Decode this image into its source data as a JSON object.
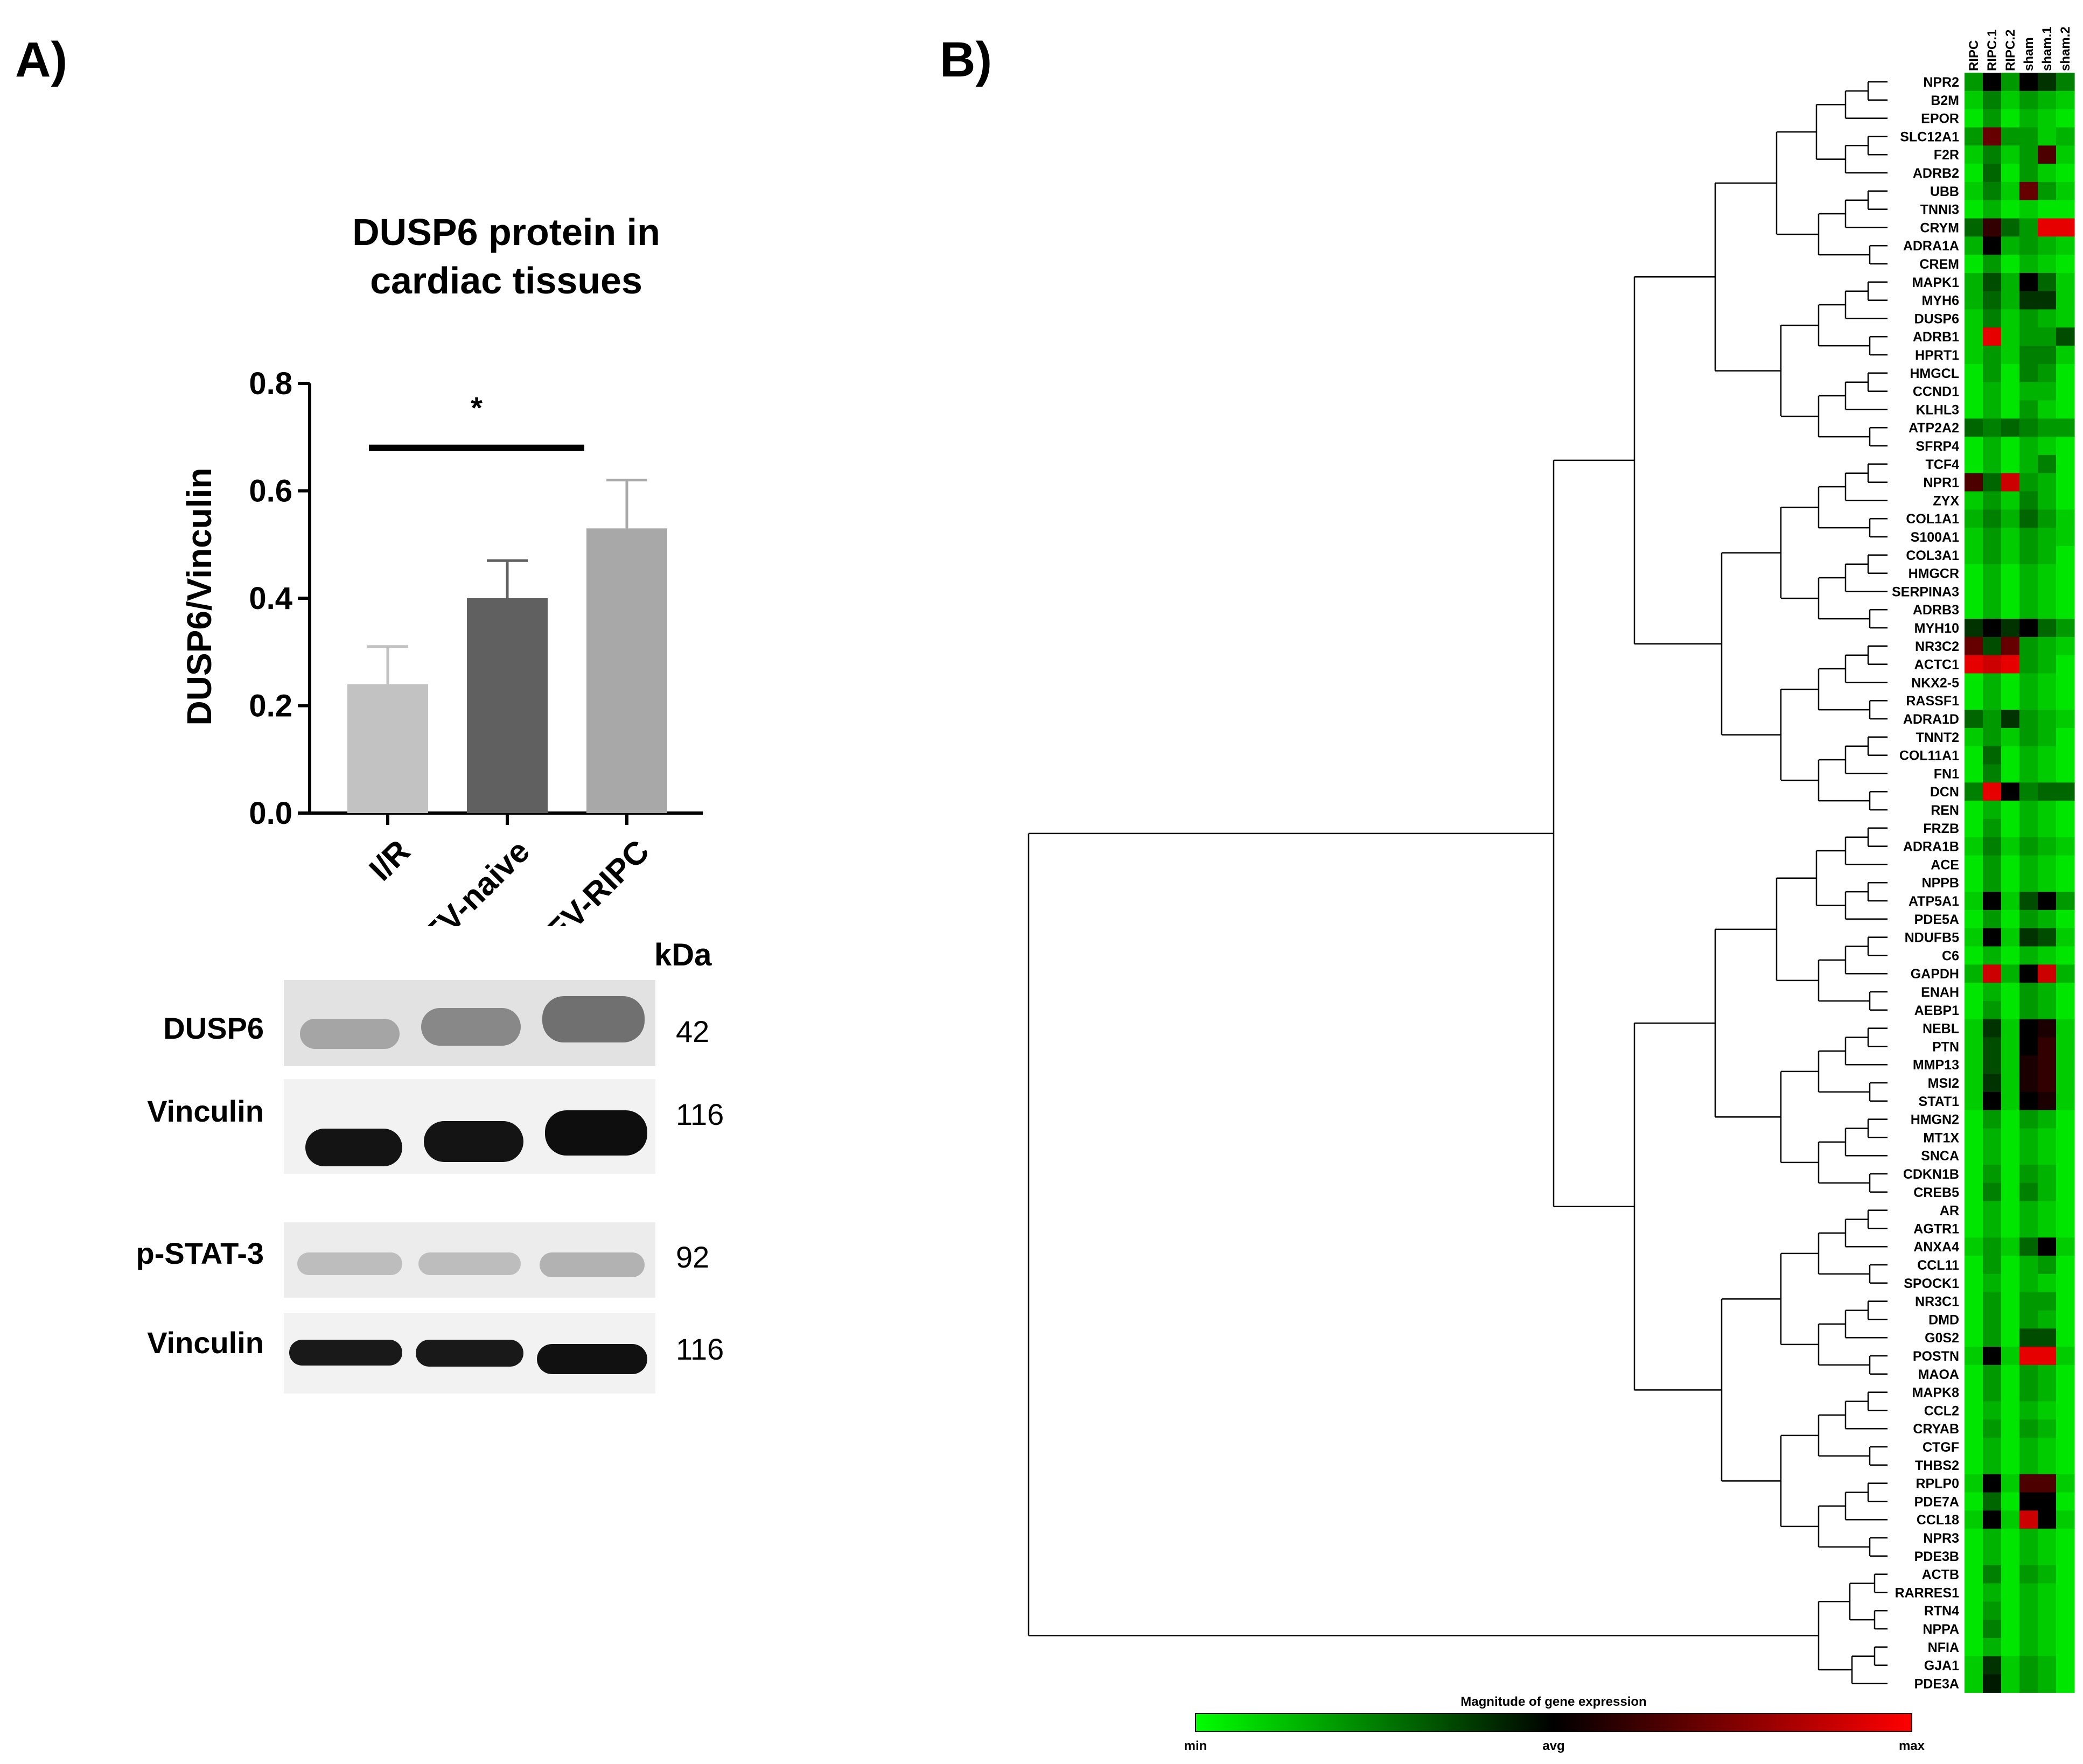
{
  "panel_a": {
    "label": "A)",
    "blot": {
      "kda_header": "kDa",
      "rows": [
        {
          "label": "DUSP6",
          "kda": "42"
        },
        {
          "label": "Vinculin",
          "kda": "116"
        },
        {
          "label": "p-STAT-3",
          "kda": "92"
        },
        {
          "label": "Vinculin",
          "kda": "116"
        }
      ]
    }
  },
  "panel_b": {
    "label": "B)"
  },
  "chart_data": [
    {
      "type": "bar",
      "title_line1": "DUSP6 protein in",
      "title_line2": "cardiac tissues",
      "ylabel": "DUSP6/Vinculin",
      "xlabel": "",
      "ylim": [
        0,
        0.8
      ],
      "yticks": [
        "0.0",
        "0.2",
        "0.4",
        "0.6",
        "0.8"
      ],
      "categories": [
        "I/R",
        "EV-naive",
        "EV-RIPC"
      ],
      "values": [
        0.24,
        0.4,
        0.53
      ],
      "errors": [
        0.07,
        0.07,
        0.09
      ],
      "colors": [
        "#c2c2c2",
        "#606060",
        "#a8a8a8"
      ],
      "significance": {
        "from": 0,
        "to": 2,
        "level": 0.68,
        "label": "*"
      }
    },
    {
      "type": "heatmap",
      "columns": [
        "RIPC",
        "RIPC.1",
        "RIPC.2",
        "sham",
        "sham.1",
        "sham.2"
      ],
      "genes": [
        "NPR2",
        "B2M",
        "EPOR",
        "SLC12A1",
        "F2R",
        "ADRB2",
        "UBB",
        "TNNI3",
        "CRYM",
        "ADRA1A",
        "CREM",
        "MAPK1",
        "MYH6",
        "DUSP6",
        "ADRB1",
        "HPRT1",
        "HMGCL",
        "CCND1",
        "KLHL3",
        "ATP2A2",
        "SFRP4",
        "TCF4",
        "NPR1",
        "ZYX",
        "COL1A1",
        "S100A1",
        "COL3A1",
        "HMGCR",
        "SERPINA3",
        "ADRB3",
        "MYH10",
        "NR3C2",
        "ACTC1",
        "NKX2-5",
        "RASSF1",
        "ADRA1D",
        "TNNT2",
        "COL11A1",
        "FN1",
        "DCN",
        "REN",
        "FRZB",
        "ADRA1B",
        "ACE",
        "NPPB",
        "ATP5A1",
        "PDE5A",
        "NDUFB5",
        "C6",
        "GAPDH",
        "ENAH",
        "AEBP1",
        "NEBL",
        "PTN",
        "MMP13",
        "MSI2",
        "STAT1",
        "HMGN2",
        "MT1X",
        "SNCA",
        "CDKN1B",
        "CREB5",
        "AR",
        "AGTR1",
        "ANXA4",
        "CCL11",
        "SPOCK1",
        "NR3C1",
        "DMD",
        "G0S2",
        "POSTN",
        "MAOA",
        "MAPK8",
        "CCL2",
        "CRYAB",
        "CTGF",
        "THBS2",
        "RPLP0",
        "PDE7A",
        "CCL18",
        "NPR3",
        "PDE3B",
        "ACTB",
        "RARRES1",
        "RTN4",
        "NPPA",
        "NFIA",
        "GJA1",
        "PDE3A"
      ],
      "values": [
        [
          -0.6,
          0.0,
          -0.6,
          0.0,
          -0.2,
          -0.5
        ],
        [
          -0.8,
          -0.5,
          -0.8,
          -0.6,
          -0.7,
          -0.8
        ],
        [
          -0.9,
          -0.6,
          -0.9,
          -0.7,
          -0.8,
          -0.9
        ],
        [
          -0.6,
          0.4,
          -0.6,
          -0.6,
          -0.8,
          -0.7
        ],
        [
          -0.8,
          -0.5,
          -0.8,
          -0.6,
          0.3,
          -0.8
        ],
        [
          -0.9,
          -0.4,
          -0.9,
          -0.6,
          -0.8,
          -0.9
        ],
        [
          -0.8,
          -0.5,
          -0.8,
          0.4,
          -0.6,
          -0.8
        ],
        [
          -0.9,
          -0.7,
          -0.9,
          -0.8,
          -0.9,
          -0.9
        ],
        [
          -0.4,
          0.2,
          -0.4,
          -0.6,
          0.9,
          0.9
        ],
        [
          -0.7,
          0.0,
          -0.7,
          -0.6,
          -0.7,
          -0.8
        ],
        [
          -0.9,
          -0.6,
          -0.9,
          -0.7,
          -0.8,
          -0.9
        ],
        [
          -0.7,
          -0.3,
          -0.7,
          0.0,
          -0.4,
          -0.8
        ],
        [
          -0.7,
          -0.4,
          -0.7,
          -0.2,
          -0.2,
          -0.8
        ],
        [
          -0.8,
          -0.5,
          -0.8,
          -0.6,
          -0.7,
          -0.8
        ],
        [
          -0.8,
          0.9,
          -0.8,
          -0.6,
          -0.6,
          -0.3
        ],
        [
          -0.8,
          -0.6,
          -0.8,
          -0.5,
          -0.5,
          -0.8
        ],
        [
          -0.9,
          -0.6,
          -0.9,
          -0.5,
          -0.6,
          -0.9
        ],
        [
          -0.9,
          -0.7,
          -0.9,
          -0.7,
          -0.7,
          -0.9
        ],
        [
          -0.9,
          -0.7,
          -0.9,
          -0.6,
          -0.8,
          -0.9
        ],
        [
          -0.4,
          -0.5,
          -0.4,
          -0.5,
          -0.6,
          -0.6
        ],
        [
          -0.9,
          -0.7,
          -0.9,
          -0.7,
          -0.8,
          -0.9
        ],
        [
          -0.9,
          -0.7,
          -0.9,
          -0.7,
          -0.5,
          -0.9
        ],
        [
          0.3,
          -0.4,
          0.8,
          -0.6,
          -0.7,
          -0.9
        ],
        [
          -0.8,
          -0.6,
          -0.8,
          -0.5,
          -0.7,
          -0.9
        ],
        [
          -0.7,
          -0.5,
          -0.7,
          -0.4,
          -0.6,
          -0.8
        ],
        [
          -0.8,
          -0.6,
          -0.8,
          -0.6,
          -0.7,
          -0.8
        ],
        [
          -0.8,
          -0.6,
          -0.8,
          -0.6,
          -0.7,
          -0.9
        ],
        [
          -0.9,
          -0.7,
          -0.9,
          -0.7,
          -0.8,
          -0.9
        ],
        [
          -0.9,
          -0.7,
          -0.9,
          -0.7,
          -0.8,
          -0.9
        ],
        [
          -0.9,
          -0.7,
          -0.9,
          -0.7,
          -0.8,
          -0.9
        ],
        [
          -0.2,
          0.0,
          -0.2,
          0.0,
          -0.4,
          -0.6
        ],
        [
          0.4,
          -0.3,
          0.4,
          -0.6,
          -0.7,
          -0.8
        ],
        [
          0.9,
          0.8,
          0.9,
          -0.6,
          -0.7,
          -0.9
        ],
        [
          -0.9,
          -0.7,
          -0.9,
          -0.7,
          -0.8,
          -0.9
        ],
        [
          -0.9,
          -0.7,
          -0.9,
          -0.7,
          -0.8,
          -0.9
        ],
        [
          -0.4,
          -0.6,
          -0.2,
          -0.6,
          -0.7,
          -0.8
        ],
        [
          -0.8,
          -0.6,
          -0.8,
          -0.6,
          -0.7,
          -0.9
        ],
        [
          -0.9,
          -0.4,
          -0.9,
          -0.7,
          -0.8,
          -0.9
        ],
        [
          -0.9,
          -0.5,
          -0.9,
          -0.7,
          -0.8,
          -0.9
        ],
        [
          -0.5,
          0.9,
          0.0,
          -0.5,
          -0.4,
          -0.4
        ],
        [
          -0.9,
          -0.7,
          -0.9,
          -0.7,
          -0.8,
          -0.9
        ],
        [
          -0.9,
          -0.6,
          -0.9,
          -0.7,
          -0.8,
          -0.9
        ],
        [
          -0.8,
          -0.5,
          -0.8,
          -0.6,
          -0.7,
          -0.8
        ],
        [
          -0.9,
          -0.6,
          -0.9,
          -0.7,
          -0.8,
          -0.9
        ],
        [
          -0.9,
          -0.6,
          -0.9,
          -0.7,
          -0.8,
          -0.9
        ],
        [
          -0.8,
          0.0,
          -0.8,
          -0.3,
          0.0,
          -0.6
        ],
        [
          -0.9,
          -0.6,
          -0.9,
          -0.6,
          -0.7,
          -0.9
        ],
        [
          -0.8,
          0.0,
          -0.8,
          -0.2,
          -0.3,
          -0.8
        ],
        [
          -0.9,
          -0.7,
          -0.9,
          -0.7,
          -0.8,
          -0.9
        ],
        [
          -0.7,
          0.8,
          -0.7,
          0.0,
          0.8,
          -0.7
        ],
        [
          -0.9,
          -0.7,
          -0.9,
          -0.6,
          -0.7,
          -0.9
        ],
        [
          -0.9,
          -0.6,
          -0.9,
          -0.6,
          -0.7,
          -0.9
        ],
        [
          -0.8,
          -0.2,
          -0.8,
          0.0,
          0.1,
          -0.8
        ],
        [
          -0.8,
          -0.3,
          -0.8,
          0.0,
          0.2,
          -0.8
        ],
        [
          -0.8,
          -0.3,
          -0.8,
          0.1,
          0.2,
          -0.8
        ],
        [
          -0.8,
          -0.2,
          -0.8,
          0.1,
          0.2,
          -0.8
        ],
        [
          -0.8,
          0.0,
          -0.8,
          0.0,
          0.1,
          -0.8
        ],
        [
          -0.9,
          -0.6,
          -0.9,
          -0.6,
          -0.7,
          -0.9
        ],
        [
          -0.9,
          -0.7,
          -0.9,
          -0.7,
          -0.8,
          -0.9
        ],
        [
          -0.9,
          -0.7,
          -0.9,
          -0.7,
          -0.8,
          -0.9
        ],
        [
          -0.9,
          -0.6,
          -0.9,
          -0.6,
          -0.7,
          -0.9
        ],
        [
          -0.9,
          -0.5,
          -0.9,
          -0.5,
          -0.7,
          -0.9
        ],
        [
          -0.9,
          -0.7,
          -0.9,
          -0.7,
          -0.8,
          -0.9
        ],
        [
          -0.9,
          -0.7,
          -0.9,
          -0.7,
          -0.8,
          -0.9
        ],
        [
          -0.8,
          -0.6,
          -0.8,
          -0.4,
          0.0,
          -0.8
        ],
        [
          -0.9,
          -0.6,
          -0.9,
          -0.7,
          -0.6,
          -0.9
        ],
        [
          -0.9,
          -0.7,
          -0.9,
          -0.7,
          -0.8,
          -0.9
        ],
        [
          -0.9,
          -0.6,
          -0.9,
          -0.6,
          -0.6,
          -0.9
        ],
        [
          -0.9,
          -0.6,
          -0.9,
          -0.6,
          -0.7,
          -0.9
        ],
        [
          -0.9,
          -0.6,
          -0.9,
          -0.3,
          -0.3,
          -0.9
        ],
        [
          -0.8,
          0.0,
          -0.8,
          0.9,
          0.9,
          -0.8
        ],
        [
          -0.9,
          -0.6,
          -0.9,
          -0.6,
          -0.7,
          -0.9
        ],
        [
          -0.9,
          -0.6,
          -0.9,
          -0.6,
          -0.7,
          -0.9
        ],
        [
          -0.9,
          -0.7,
          -0.9,
          -0.7,
          -0.8,
          -0.9
        ],
        [
          -0.9,
          -0.6,
          -0.9,
          -0.6,
          -0.7,
          -0.9
        ],
        [
          -0.9,
          -0.7,
          -0.9,
          -0.7,
          -0.8,
          -0.9
        ],
        [
          -0.9,
          -0.7,
          -0.9,
          -0.7,
          -0.8,
          -0.9
        ],
        [
          -0.8,
          0.0,
          -0.8,
          0.3,
          0.3,
          -0.8
        ],
        [
          -0.9,
          -0.4,
          -0.9,
          0.0,
          0.0,
          -0.9
        ],
        [
          -0.8,
          0.0,
          -0.8,
          0.8,
          0.0,
          -0.8
        ],
        [
          -0.9,
          -0.7,
          -0.9,
          -0.7,
          -0.8,
          -0.9
        ],
        [
          -0.9,
          -0.7,
          -0.9,
          -0.7,
          -0.8,
          -0.9
        ],
        [
          -0.9,
          -0.5,
          -0.9,
          -0.6,
          -0.7,
          -0.9
        ],
        [
          -0.9,
          -0.7,
          -0.9,
          -0.7,
          -0.8,
          -0.9
        ],
        [
          -0.9,
          -0.6,
          -0.9,
          -0.7,
          -0.8,
          -0.9
        ],
        [
          -0.9,
          -0.5,
          -0.9,
          -0.7,
          -0.8,
          -0.9
        ],
        [
          -0.9,
          -0.7,
          -0.9,
          -0.7,
          -0.8,
          -0.9
        ],
        [
          -0.8,
          -0.2,
          -0.8,
          -0.6,
          -0.7,
          -0.9
        ],
        [
          -0.8,
          -0.1,
          -0.8,
          -0.6,
          -0.7,
          -0.9
        ]
      ],
      "scale": {
        "title": "Magnitude of gene expression",
        "min_label": "min",
        "mid_label": "avg",
        "max_label": "max",
        "colors": [
          "#00ff00",
          "#000000",
          "#ff0000"
        ]
      }
    }
  ]
}
